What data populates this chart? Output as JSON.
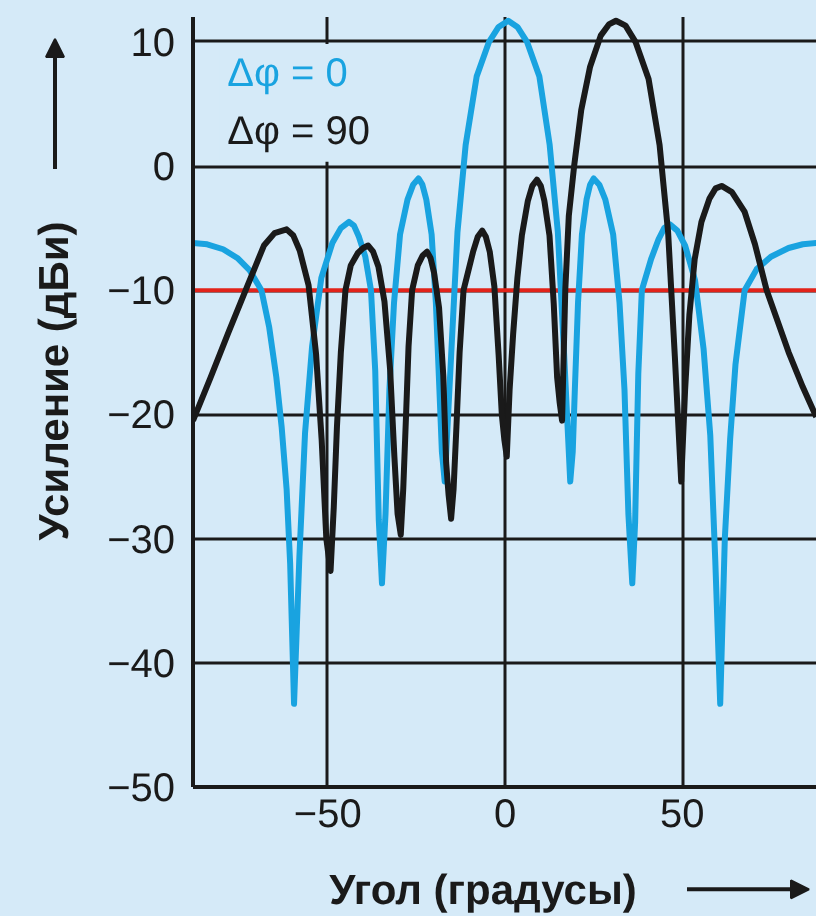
{
  "chart_data": {
    "type": "line",
    "xlabel": "Угол (градусы)",
    "ylabel": "Усиление (дБи)",
    "xlim": [
      -88,
      88
    ],
    "ylim": [
      -50,
      12
    ],
    "xticks": [
      -50,
      0,
      50
    ],
    "yticks": [
      -50,
      -40,
      -30,
      -20,
      -10,
      0,
      10
    ],
    "grid": true,
    "legend": "top left",
    "ref_lines": [
      {
        "axis": "y",
        "value": -10,
        "color": "#e2231a"
      }
    ],
    "series": [
      {
        "name": "Δφ = 0",
        "color": "#19a3e0",
        "x": [
          -88,
          -84,
          -79.5,
          -75.5,
          -72,
          -68.7,
          -66.5,
          -64.5,
          -63,
          -61.6,
          -60.6,
          -59.5,
          -58,
          -56.4,
          -54.4,
          -51.8,
          -48.7,
          -46.3,
          -44,
          -42.6,
          -41.2,
          -39.4,
          -37.8,
          -36.6,
          -35.6,
          -34.7,
          -33.7,
          -32.6,
          -31.3,
          -29.6,
          -27.5,
          -25.9,
          -24.4,
          -23.3,
          -22.2,
          -20.7,
          -19.5,
          -18.5,
          -17.8,
          -17,
          -15.2,
          -13.4,
          -11.1,
          -8,
          -4.5,
          -1.8,
          0.9,
          3.5,
          6.2,
          9.7,
          12.6,
          14.9,
          16.7,
          18.4,
          19.1,
          19.7,
          20.6,
          21.7,
          23,
          24,
          25,
          26.6,
          28.3,
          30.5,
          32.3,
          33.7,
          34.8,
          35.9,
          36.7,
          37.6,
          38.6,
          41.2,
          43.3,
          44.9,
          46.5,
          48.6,
          50.8,
          53.6,
          56,
          57.9,
          59.3,
          60.7,
          62,
          63.5,
          65,
          67.6,
          71,
          75,
          80,
          84,
          87.8
        ],
        "values": [
          -6.2,
          -6.3,
          -6.7,
          -7.4,
          -8.4,
          -10,
          -13,
          -17,
          -21,
          -26,
          -32,
          -43.3,
          -31.5,
          -21.5,
          -14.5,
          -9,
          -6.2,
          -5,
          -4.5,
          -4.8,
          -5.7,
          -7.3,
          -10,
          -16.5,
          -28.5,
          -33.6,
          -28,
          -18,
          -11,
          -5.5,
          -2.7,
          -1.5,
          -1,
          -1.5,
          -2.7,
          -5.5,
          -11,
          -18,
          -23,
          -25.4,
          -15.3,
          -5.3,
          1.7,
          7.2,
          10,
          11.2,
          11.7,
          11.2,
          10,
          7.2,
          1.7,
          -5.3,
          -15.3,
          -25.4,
          -23,
          -18,
          -11,
          -5.5,
          -2.7,
          -1.5,
          -1,
          -1.5,
          -2.7,
          -5.5,
          -11,
          -18,
          -28,
          -33.6,
          -28.7,
          -16.7,
          -10,
          -7.5,
          -5.9,
          -5,
          -4.7,
          -5.2,
          -6.4,
          -9.2,
          -14.7,
          -21.7,
          -31.7,
          -43.3,
          -30,
          -22,
          -16,
          -10,
          -8.3,
          -7.3,
          -6.6,
          -6.3,
          -6.2
        ]
      },
      {
        "name": "Δφ = 90",
        "color": "#1a1a1a",
        "x": [
          -88,
          -83,
          -78,
          -73,
          -68,
          -65,
          -61.6,
          -59.7,
          -57.9,
          -55.4,
          -53.3,
          -51.7,
          -50.4,
          -49.2,
          -48.3,
          -47.4,
          -46.3,
          -45,
          -43.5,
          -41.5,
          -40,
          -38.6,
          -37.2,
          -35.7,
          -34,
          -32.4,
          -31.2,
          -30.3,
          -29.4,
          -28.7,
          -27.9,
          -27.2,
          -26.2,
          -24.6,
          -23.2,
          -22,
          -21,
          -20,
          -18.6,
          -17.4,
          -16.6,
          -15.9,
          -15.2,
          -14.5,
          -13.7,
          -12.8,
          -11.7,
          -9,
          -7.7,
          -6.4,
          -5.4,
          -4.3,
          -3,
          -1.8,
          -0.9,
          -0.2,
          0.5,
          1.3,
          2.3,
          3.5,
          4.75,
          6.45,
          7.7,
          9,
          10.1,
          11.1,
          12.55,
          13.75,
          14.7,
          15.4,
          16.1,
          17,
          18,
          19.5,
          21.5,
          24,
          27,
          29.3,
          31.3,
          34,
          36.8,
          40.5,
          43.6,
          46,
          47.9,
          49.7,
          50.8,
          52,
          53.5,
          55.4,
          57.7,
          59.4,
          61.1,
          64,
          67.6,
          70.5,
          73.8,
          80,
          84,
          87.8
        ],
        "values": [
          -20.5,
          -17,
          -13.4,
          -9.9,
          -6.4,
          -5.4,
          -5.1,
          -5.6,
          -6.8,
          -9.6,
          -15.1,
          -22.1,
          -30,
          -32.6,
          -27.5,
          -21,
          -15,
          -10,
          -8,
          -7,
          -6.6,
          -6.4,
          -6.9,
          -8.1,
          -10.9,
          -16.4,
          -23.4,
          -28,
          -29.7,
          -26,
          -20,
          -14.5,
          -10,
          -8,
          -7.2,
          -6.9,
          -7.4,
          -8.6,
          -11.4,
          -16.9,
          -23.9,
          -26.5,
          -28.4,
          -26,
          -21,
          -15,
          -10,
          -6.9,
          -5.7,
          -5.2,
          -5.7,
          -6.9,
          -9.7,
          -15.2,
          -20,
          -22,
          -23.4,
          -18,
          -13.5,
          -9,
          -5.6,
          -2.8,
          -1.6,
          -1.1,
          -1.6,
          -2.8,
          -5.6,
          -11.1,
          -17,
          -19,
          -20.5,
          -10,
          -4,
          0,
          4.5,
          8,
          10.5,
          11.4,
          11.7,
          11.3,
          10,
          7,
          1.7,
          -5.3,
          -15.3,
          -25.4,
          -18,
          -12,
          -7.5,
          -4.5,
          -2.6,
          -1.8,
          -1.6,
          -2.1,
          -3.7,
          -6.3,
          -10,
          -15,
          -17.8,
          -20.2
        ]
      }
    ]
  }
}
